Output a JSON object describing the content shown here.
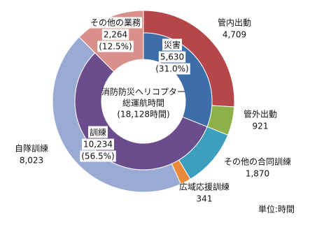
{
  "chart_data": {
    "type": "nested-donut",
    "center_title": [
      "消防防災ヘリコプター",
      "総運航時間"
    ],
    "total": {
      "value": 18128,
      "label": "(18,128時間)"
    },
    "unit_label": "単位:時間",
    "inner": {
      "categories": [
        "災害",
        "訓練",
        "その他の業務"
      ],
      "values": [
        5630,
        10234,
        2264
      ],
      "value_labels": [
        "5,630",
        "10,234",
        "2,264"
      ],
      "shares": [
        {
          "value": 31.0,
          "label": "(31.0%)"
        },
        {
          "value": 56.5,
          "label": "(56.5%)"
        },
        {
          "value": 12.5,
          "label": "(12.5%)"
        }
      ],
      "colors": [
        "#3e6ea8",
        "#6b4c8c",
        "#d9908a"
      ],
      "span_outer": [
        false,
        false,
        true
      ]
    },
    "outer": {
      "categories": [
        "管内出動",
        "管外出動",
        "その他の合同訓練",
        "広域応援訓練",
        "自隊訓練"
      ],
      "values": [
        4709,
        921,
        1870,
        341,
        8023
      ],
      "value_labels": [
        "4,709",
        "921",
        "1,870",
        "341",
        "8,023"
      ],
      "colors": [
        "#b5464a",
        "#8db04a",
        "#3d9fbd",
        "#e88a3a",
        "#9aabd3"
      ]
    }
  }
}
